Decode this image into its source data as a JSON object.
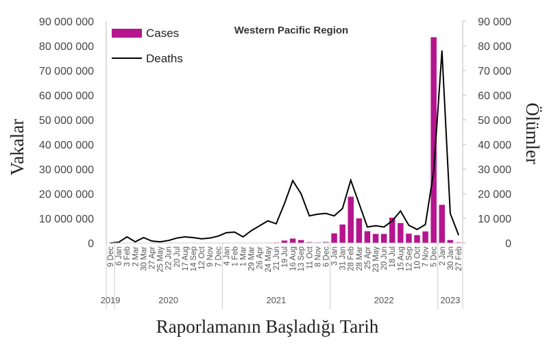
{
  "chart_data": {
    "type": "bar+line",
    "title": "Western Pacific Region",
    "xlabel": "Raporlamanın Başladığı Tarih",
    "ylabel": "Vakalar",
    "y2label": "Ölümler",
    "ylim": [
      0,
      90000000
    ],
    "y2lim": [
      0,
      90000
    ],
    "yticks": [
      "0",
      "10 000 000",
      "20 000 000",
      "30 000 000",
      "40 000 000",
      "50 000 000",
      "60 000 000",
      "70 000 000",
      "80 000 000",
      "90 000 000"
    ],
    "y2ticks": [
      "0",
      "10 000",
      "20 000",
      "30 000",
      "40 000",
      "50 000",
      "60 000",
      "70 000",
      "80 000",
      "90 000"
    ],
    "legend": {
      "placement": "top-left",
      "entries": [
        "Cases",
        "Deaths"
      ]
    },
    "colors": {
      "cases": "#b5158f",
      "deaths": "#000000"
    },
    "years": [
      {
        "label": "2019",
        "count": 1
      },
      {
        "label": "2020",
        "count": 13
      },
      {
        "label": "2021",
        "count": 13
      },
      {
        "label": "2022",
        "count": 13
      },
      {
        "label": "2023",
        "count": 3
      }
    ],
    "categories": [
      "9 Dec",
      "6 Jan",
      "3 Feb",
      "2 Mar",
      "30 Mar",
      "27 Apr",
      "25 May",
      "22 Jun",
      "20 Jul",
      "17 Aug",
      "14 Sep",
      "12 Oct",
      "9 Nov",
      "7 Dec",
      "4 Jan",
      "1 Feb",
      "1 Mar",
      "29 Mar",
      "26 Apr",
      "24 May",
      "21 Jun",
      "19 Jul",
      "16 Aug",
      "13 Sep",
      "11 Oct",
      "8 Nov",
      "6 Dec",
      "3 Jan",
      "31 Jan",
      "28 Feb",
      "28 Mar",
      "25 Apr",
      "23 May",
      "20 Jun",
      "18 Jul",
      "15 Aug",
      "12 Sep",
      "10 Oct",
      "7 Nov",
      "5 Dec",
      "2 Jan",
      "30 Jan",
      "27 Feb"
    ],
    "series": [
      {
        "name": "Cases",
        "type": "bar",
        "axis": "left",
        "values": [
          0,
          5000,
          10000,
          10000,
          10000,
          5000,
          5000,
          10000,
          10000,
          20000,
          20000,
          10000,
          20000,
          30000,
          50000,
          50000,
          30000,
          50000,
          80000,
          150000,
          300000,
          1000000,
          1800000,
          1200000,
          500000,
          300000,
          600000,
          3900000,
          7500000,
          18800000,
          10000000,
          4800000,
          3700000,
          3700000,
          10300000,
          8100000,
          3800000,
          3200000,
          4700000,
          83500000,
          15500000,
          1200000,
          400000
        ]
      },
      {
        "name": "Deaths",
        "type": "line",
        "axis": "right",
        "values": [
          0,
          300,
          2500,
          500,
          2200,
          800,
          500,
          1000,
          2000,
          2500,
          2200,
          1700,
          2000,
          2800,
          4200,
          4400,
          2500,
          5000,
          7000,
          9000,
          7800,
          16000,
          25300,
          20000,
          11000,
          11700,
          12000,
          11000,
          14000,
          25500,
          16000,
          6500,
          7000,
          6500,
          9000,
          13000,
          7200,
          5500,
          7500,
          29000,
          78000,
          12000,
          3300
        ]
      }
    ]
  }
}
